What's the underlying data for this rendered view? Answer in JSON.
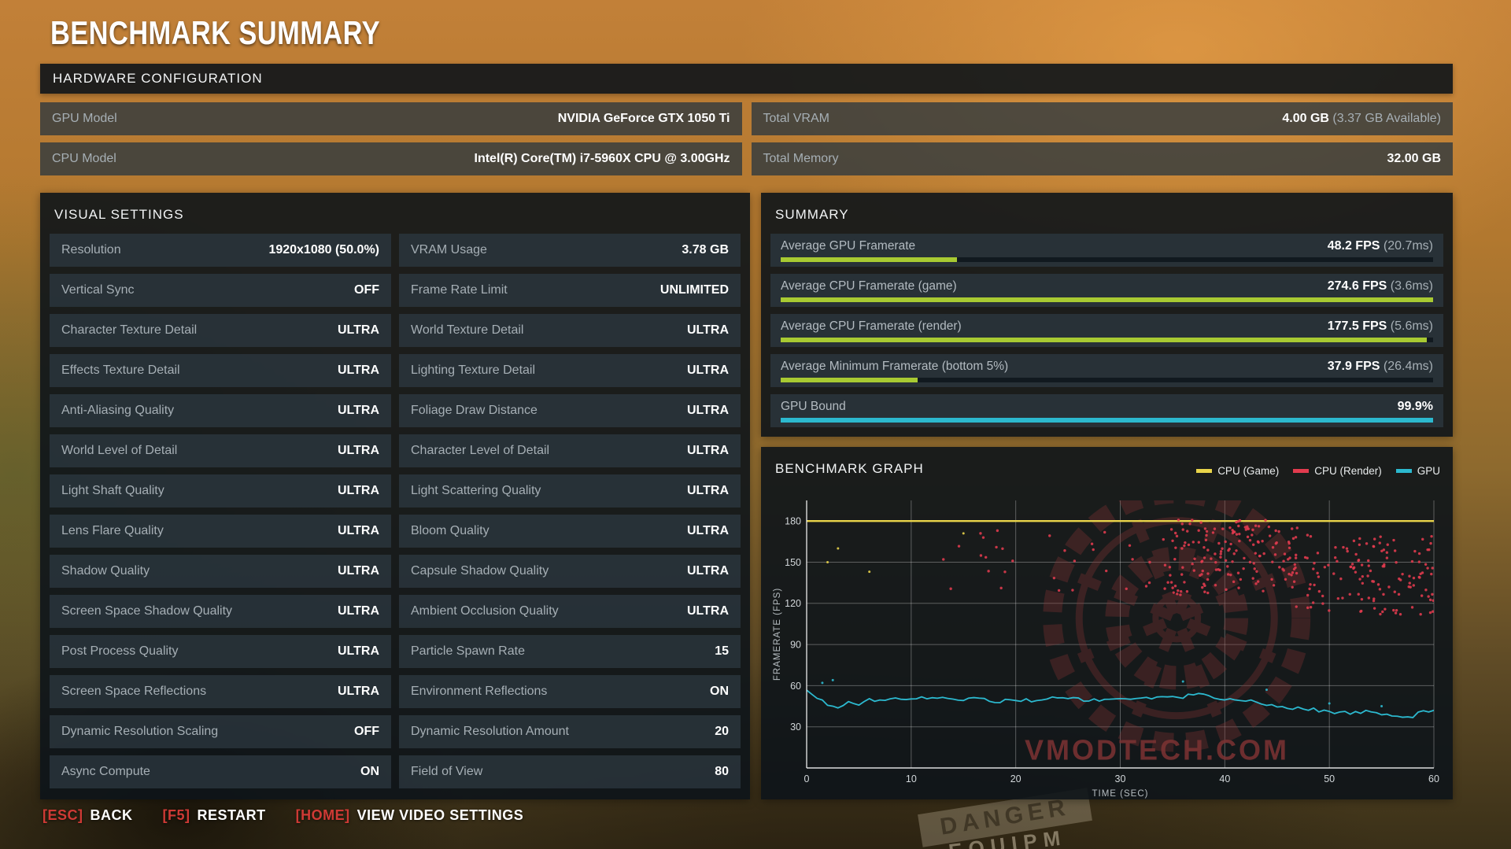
{
  "title": "BENCHMARK SUMMARY",
  "background": {
    "sign_text": "DANGER",
    "crate_text": "EQUIPM"
  },
  "hardware": {
    "header": "HARDWARE CONFIGURATION",
    "rows": [
      {
        "label": "GPU Model",
        "value": "NVIDIA GeForce GTX 1050 Ti",
        "extra": ""
      },
      {
        "label": "Total VRAM",
        "value": "4.00 GB",
        "extra": "(3.37 GB Available)"
      },
      {
        "label": "CPU Model",
        "value": "Intel(R) Core(TM) i7-5960X CPU @ 3.00GHz",
        "extra": ""
      },
      {
        "label": "Total Memory",
        "value": "32.00 GB",
        "extra": ""
      }
    ]
  },
  "visual_settings": {
    "header": "VISUAL SETTINGS",
    "items": [
      {
        "label": "Resolution",
        "value": "1920x1080 (50.0%)"
      },
      {
        "label": "VRAM Usage",
        "value": "3.78 GB"
      },
      {
        "label": "Vertical Sync",
        "value": "OFF"
      },
      {
        "label": "Frame Rate Limit",
        "value": "UNLIMITED"
      },
      {
        "label": "Character Texture Detail",
        "value": "ULTRA"
      },
      {
        "label": "World Texture Detail",
        "value": "ULTRA"
      },
      {
        "label": "Effects Texture Detail",
        "value": "ULTRA"
      },
      {
        "label": "Lighting Texture Detail",
        "value": "ULTRA"
      },
      {
        "label": "Anti-Aliasing Quality",
        "value": "ULTRA"
      },
      {
        "label": "Foliage Draw Distance",
        "value": "ULTRA"
      },
      {
        "label": "World Level of Detail",
        "value": "ULTRA"
      },
      {
        "label": "Character Level of Detail",
        "value": "ULTRA"
      },
      {
        "label": "Light Shaft Quality",
        "value": "ULTRA"
      },
      {
        "label": "Light Scattering Quality",
        "value": "ULTRA"
      },
      {
        "label": "Lens Flare Quality",
        "value": "ULTRA"
      },
      {
        "label": "Bloom Quality",
        "value": "ULTRA"
      },
      {
        "label": "Shadow Quality",
        "value": "ULTRA"
      },
      {
        "label": "Capsule Shadow Quality",
        "value": "ULTRA"
      },
      {
        "label": "Screen Space Shadow Quality",
        "value": "ULTRA"
      },
      {
        "label": "Ambient Occlusion Quality",
        "value": "ULTRA"
      },
      {
        "label": "Post Process Quality",
        "value": "ULTRA"
      },
      {
        "label": "Particle Spawn Rate",
        "value": "15"
      },
      {
        "label": "Screen Space Reflections",
        "value": "ULTRA"
      },
      {
        "label": "Environment Reflections",
        "value": "ON"
      },
      {
        "label": "Dynamic Resolution Scaling",
        "value": "OFF"
      },
      {
        "label": "Dynamic Resolution Amount",
        "value": "20"
      },
      {
        "label": "Async Compute",
        "value": "ON"
      },
      {
        "label": "Field of View",
        "value": "80"
      }
    ]
  },
  "summary": {
    "header": "SUMMARY",
    "metrics": [
      {
        "label": "Average GPU Framerate",
        "value": "48.2 FPS",
        "extra": "(20.7ms)",
        "bar_pct": 27,
        "bar_color": "#a8ca32"
      },
      {
        "label": "Average CPU Framerate (game)",
        "value": "274.6 FPS",
        "extra": "(3.6ms)",
        "bar_pct": 100,
        "bar_color": "#a8ca32"
      },
      {
        "label": "Average CPU Framerate (render)",
        "value": "177.5 FPS",
        "extra": "(5.6ms)",
        "bar_pct": 99,
        "bar_color": "#a8ca32"
      },
      {
        "label": "Average Minimum Framerate (bottom 5%)",
        "value": "37.9 FPS",
        "extra": "(26.4ms)",
        "bar_pct": 21,
        "bar_color": "#a8ca32"
      },
      {
        "label": "GPU Bound",
        "value": "99.9%",
        "extra": "",
        "bar_pct": 100,
        "bar_color": "#2cb9cf"
      }
    ]
  },
  "graph": {
    "header": "BENCHMARK GRAPH",
    "watermark": "VMODTECH.COM"
  },
  "chart_data": {
    "type": "line",
    "title": "BENCHMARK GRAPH",
    "xlabel": "TIME (SEC)",
    "ylabel": "FRAMERATE (FPS)",
    "xlim": [
      0,
      60
    ],
    "ylim": [
      0,
      195
    ],
    "x_ticks": [
      0,
      10,
      20,
      30,
      40,
      50,
      60
    ],
    "y_ticks": [
      30,
      60,
      90,
      120,
      150,
      180
    ],
    "grid": true,
    "legend_position": "top-right",
    "seed": 42,
    "series": [
      {
        "name": "CPU (Game)",
        "color": "#e9d44a",
        "style": "line",
        "width": 2.4,
        "noise": 0,
        "points": [
          [
            0,
            180
          ],
          [
            60,
            180
          ]
        ],
        "dots": [
          [
            2,
            150
          ],
          [
            3,
            160
          ],
          [
            6,
            143
          ],
          [
            15,
            171
          ]
        ]
      },
      {
        "name": "CPU (Render)",
        "color": "#e23b4e",
        "style": "scatter",
        "dot_r": 1.7,
        "clusters": [
          {
            "x_min": 13,
            "x_max": 34,
            "y_min": 128,
            "y_max": 179,
            "count": 30
          },
          {
            "x_min": 34,
            "x_max": 47,
            "y_min": 126,
            "y_max": 181,
            "count": 160
          },
          {
            "x_min": 46,
            "x_max": 60,
            "y_min": 112,
            "y_max": 170,
            "count": 140
          }
        ]
      },
      {
        "name": "GPU",
        "color": "#2cb9cf",
        "style": "line",
        "width": 1.8,
        "noise": 1.3,
        "points": [
          [
            0,
            57
          ],
          [
            1,
            52
          ],
          [
            2,
            46
          ],
          [
            3,
            45
          ],
          [
            4,
            48
          ],
          [
            5,
            47
          ],
          [
            6,
            50
          ],
          [
            7,
            49
          ],
          [
            8,
            51
          ],
          [
            10,
            50
          ],
          [
            12,
            52
          ],
          [
            14,
            49
          ],
          [
            16,
            51
          ],
          [
            18,
            48
          ],
          [
            20,
            50
          ],
          [
            22,
            49
          ],
          [
            24,
            51
          ],
          [
            26,
            50
          ],
          [
            28,
            49
          ],
          [
            30,
            51
          ],
          [
            32,
            50
          ],
          [
            34,
            52
          ],
          [
            36,
            51
          ],
          [
            37,
            54
          ],
          [
            38,
            55
          ],
          [
            39,
            52
          ],
          [
            40,
            50
          ],
          [
            42,
            49
          ],
          [
            44,
            46
          ],
          [
            46,
            44
          ],
          [
            48,
            43
          ],
          [
            50,
            41
          ],
          [
            52,
            40
          ],
          [
            54,
            41
          ],
          [
            56,
            39
          ],
          [
            57,
            37
          ],
          [
            58,
            38
          ],
          [
            59,
            41
          ],
          [
            60,
            42
          ]
        ],
        "dots": [
          [
            1.5,
            62
          ],
          [
            2.5,
            64
          ],
          [
            36,
            63
          ],
          [
            44,
            57
          ],
          [
            50,
            47
          ],
          [
            55,
            45
          ]
        ]
      }
    ]
  },
  "footer": {
    "items": [
      {
        "name": "back",
        "key": "[ESC]",
        "label": "BACK"
      },
      {
        "name": "restart",
        "key": "[F5]",
        "label": "RESTART"
      },
      {
        "name": "view-video-settings",
        "key": "[HOME]",
        "label": "VIEW VIDEO SETTINGS"
      }
    ]
  }
}
